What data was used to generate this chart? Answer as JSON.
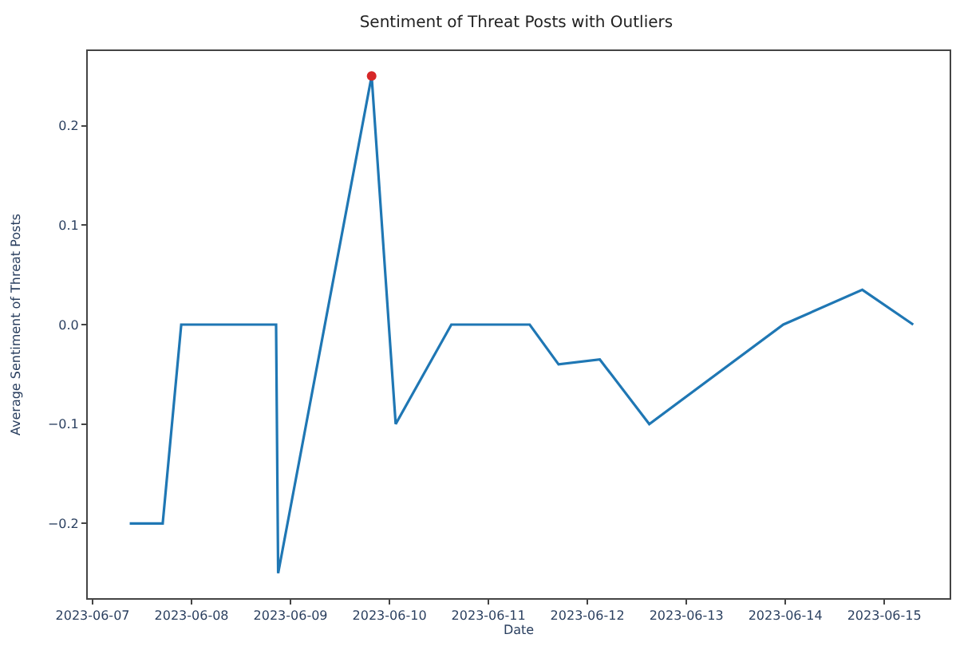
{
  "chart_data": {
    "type": "line",
    "title": "Sentiment of Threat Posts with Outliers",
    "xlabel": "Date",
    "ylabel": "Average Sentiment of Threat Posts",
    "series": [
      {
        "color": "#1f77b4",
        "marker": "none",
        "x": [
          "2023-06-07T09:00",
          "2023-06-07T17:00",
          "2023-06-07T21:30",
          "2023-06-08T20:30",
          "2023-06-08T21:00",
          "2023-06-09T19:40",
          "2023-06-10T01:30",
          "2023-06-10T15:00",
          "2023-06-11T10:00",
          "2023-06-11T17:00",
          "2023-06-12T03:00",
          "2023-06-12T15:00",
          "2023-06-13T23:30",
          "2023-06-14T18:40",
          "2023-06-15T07:00"
        ],
        "values": [
          -0.2,
          -0.2,
          0.0,
          0.0,
          -0.25,
          0.25,
          -0.1,
          0.0,
          0.0,
          -0.04,
          -0.035,
          -0.1,
          0.0,
          0.035,
          0.0
        ]
      },
      {
        "type": "scatter",
        "color": "#d62728",
        "marker": "circle",
        "x": [
          "2023-06-09T19:40"
        ],
        "values": [
          0.25
        ]
      }
    ],
    "xlim": [
      "2023-06-06T22:50",
      "2023-06-15T15:50"
    ],
    "xticks": [
      "2023-06-07",
      "2023-06-08",
      "2023-06-09",
      "2023-06-10",
      "2023-06-11",
      "2023-06-12",
      "2023-06-13",
      "2023-06-14",
      "2023-06-15"
    ],
    "ylim": [
      -0.275,
      0.275
    ],
    "yticks": [
      {
        "value": -0.2,
        "label": "−0.2"
      },
      {
        "value": -0.1,
        "label": "−0.1"
      },
      {
        "value": 0.0,
        "label": "0.0"
      },
      {
        "value": 0.1,
        "label": "0.1"
      },
      {
        "value": 0.2,
        "label": "0.2"
      }
    ],
    "tick_labels": "xy"
  }
}
